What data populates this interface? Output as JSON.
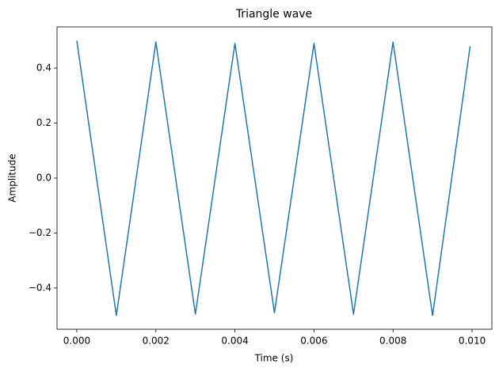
{
  "chart_data": {
    "type": "line",
    "title": "Triangle wave",
    "x_label": "Time (s)",
    "y_label": "Amplitude",
    "x": [
      0,
      0.001,
      0.002,
      0.003,
      0.004,
      0.005,
      0.006,
      0.007,
      0.008,
      0.009,
      0.00995
    ],
    "series": [
      {
        "name": "Triangle wave",
        "color": "#1f77b4",
        "values": [
          0.5,
          -0.5,
          0.495,
          -0.495,
          0.49,
          -0.49,
          0.49,
          -0.495,
          0.495,
          -0.5,
          0.48
        ]
      }
    ],
    "xlim": [
      -0.0005,
      0.0105
    ],
    "ylim": [
      -0.55,
      0.55
    ],
    "xticks": [
      {
        "value": 0,
        "label": "0.000"
      },
      {
        "value": 0.002,
        "label": "0.002"
      },
      {
        "value": 0.004,
        "label": "0.004"
      },
      {
        "value": 0.006,
        "label": "0.006"
      },
      {
        "value": 0.008,
        "label": "0.008"
      },
      {
        "value": 0.01,
        "label": "0.010"
      }
    ],
    "yticks": [
      {
        "value": -0.4,
        "label": "−0.4"
      },
      {
        "value": -0.2,
        "label": "−0.2"
      },
      {
        "value": 0,
        "label": "0.0"
      },
      {
        "value": 0.2,
        "label": "0.2"
      },
      {
        "value": 0.4,
        "label": "0.4"
      }
    ],
    "grid": false
  }
}
